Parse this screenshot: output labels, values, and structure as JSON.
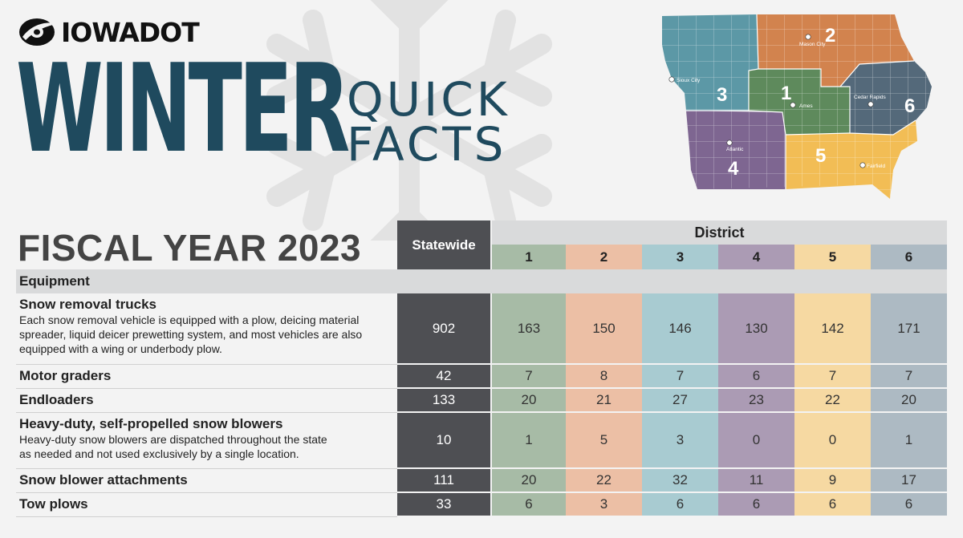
{
  "logo": {
    "text": "IOWADOT"
  },
  "title": {
    "line1": "WINTER",
    "line2a": "QUICK",
    "line2b": "FACTS"
  },
  "subtitle": "FISCAL YEAR 2023",
  "map": {
    "districts": [
      {
        "number": "1",
        "color": "#5e8a5c",
        "city": "Ames"
      },
      {
        "number": "2",
        "color": "#d2834e",
        "city": "Mason City"
      },
      {
        "number": "3",
        "color": "#5c98a6",
        "city": "Sioux City"
      },
      {
        "number": "4",
        "color": "#7e6691",
        "city": "Atlantic"
      },
      {
        "number": "5",
        "color": "#f2bd55",
        "city": "Fairfield"
      },
      {
        "number": "6",
        "color": "#54697a",
        "city": "Cedar Rapids"
      }
    ]
  },
  "table": {
    "statewide_header": "Statewide",
    "district_header": "District",
    "district_numbers": [
      "1",
      "2",
      "3",
      "4",
      "5",
      "6"
    ],
    "section": "Equipment",
    "rows": [
      {
        "name": "Snow removal trucks",
        "desc_lines": [
          "Each snow removal vehicle is equipped with a plow, deicing material",
          "spreader, liquid deicer prewetting system, and most vehicles are also",
          "equipped with a wing or underbody plow."
        ],
        "statewide": "902",
        "districts": [
          "163",
          "150",
          "146",
          "130",
          "142",
          "171"
        ]
      },
      {
        "name": "Motor graders",
        "desc_lines": [],
        "statewide": "42",
        "districts": [
          "7",
          "8",
          "7",
          "6",
          "7",
          "7"
        ]
      },
      {
        "name": "Endloaders",
        "desc_lines": [],
        "statewide": "133",
        "districts": [
          "20",
          "21",
          "27",
          "23",
          "22",
          "20"
        ]
      },
      {
        "name": "Heavy-duty, self-propelled snow blowers",
        "desc_lines": [
          "Heavy-duty snow blowers are dispatched throughout the state",
          "as needed and not used exclusively by a single location."
        ],
        "statewide": "10",
        "districts": [
          "1",
          "5",
          "3",
          "0",
          "0",
          "1"
        ]
      },
      {
        "name": "Snow blower attachments",
        "desc_lines": [],
        "statewide": "111",
        "districts": [
          "20",
          "22",
          "32",
          "11",
          "9",
          "17"
        ]
      },
      {
        "name": "Tow plows",
        "desc_lines": [],
        "statewide": "33",
        "districts": [
          "6",
          "3",
          "6",
          "6",
          "6",
          "6"
        ]
      }
    ]
  }
}
